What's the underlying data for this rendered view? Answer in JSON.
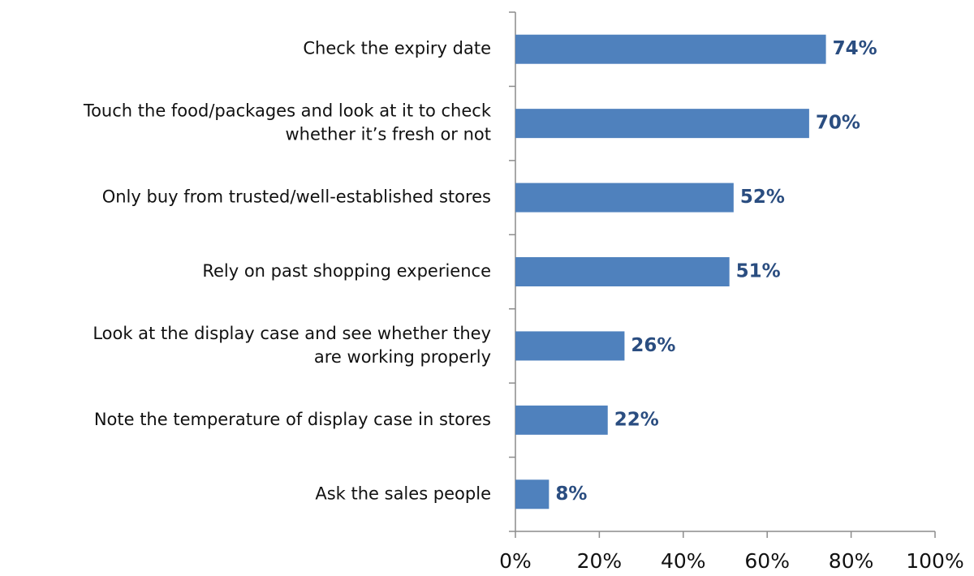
{
  "chart_data": {
    "type": "barh",
    "categories": [
      "Check the expiry date",
      "Touch the food/packages and look at it to check\nwhether it’s fresh or not",
      "Only buy from trusted/well-established stores",
      "Rely on past shopping experience",
      "Look at the display case and see whether they\nare working properly",
      "Note the temperature of display case in stores",
      "Ask the sales people"
    ],
    "values": [
      74,
      70,
      52,
      51,
      26,
      22,
      8
    ],
    "value_labels": [
      "74%",
      "70%",
      "52%",
      "51%",
      "26%",
      "22%",
      "8%"
    ],
    "color": "#4f81bd",
    "xlim": [
      0,
      100
    ],
    "xticks": [
      {
        "value": 0,
        "label": "0%"
      },
      {
        "value": 20,
        "label": "20%"
      },
      {
        "value": 40,
        "label": "40%"
      },
      {
        "value": 60,
        "label": "60%"
      },
      {
        "value": 80,
        "label": "80%"
      },
      {
        "value": 100,
        "label": "100%"
      }
    ],
    "grid": false
  }
}
